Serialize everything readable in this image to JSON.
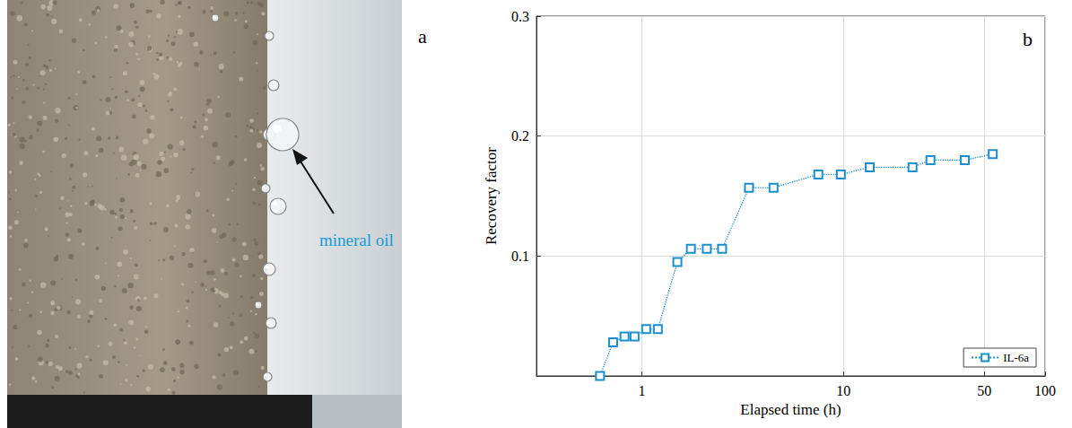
{
  "figure": {
    "panels": [
      {
        "letter": "a",
        "annotation": "mineral oil"
      }
    ]
  },
  "chart_data": {
    "panel_letter": "b",
    "type": "line",
    "x_label": "Elapsed time (h)",
    "y_label": "Recovery factor",
    "x": [
      0.62,
      0.72,
      0.82,
      0.92,
      1.05,
      1.2,
      1.5,
      1.75,
      2.1,
      2.5,
      3.4,
      4.5,
      7.5,
      9.7,
      13.5,
      22,
      27,
      40,
      55
    ],
    "series": [
      {
        "name": "IL-6a",
        "color": "#1a8fd0",
        "marker": "square",
        "line_style": "dotted",
        "values": [
          0.0,
          0.028,
          0.033,
          0.033,
          0.039,
          0.039,
          0.095,
          0.106,
          0.106,
          0.106,
          0.157,
          0.157,
          0.168,
          0.168,
          0.174,
          0.174,
          0.18,
          0.18,
          0.185
        ]
      }
    ],
    "log": "x",
    "xlim": [
      0.3,
      100
    ],
    "xticks": [
      1,
      10,
      50,
      100
    ],
    "ylim": [
      0,
      0.3
    ],
    "yticks": [
      0.1,
      0.2,
      0.3
    ],
    "grid": true,
    "legend": "lower right"
  }
}
